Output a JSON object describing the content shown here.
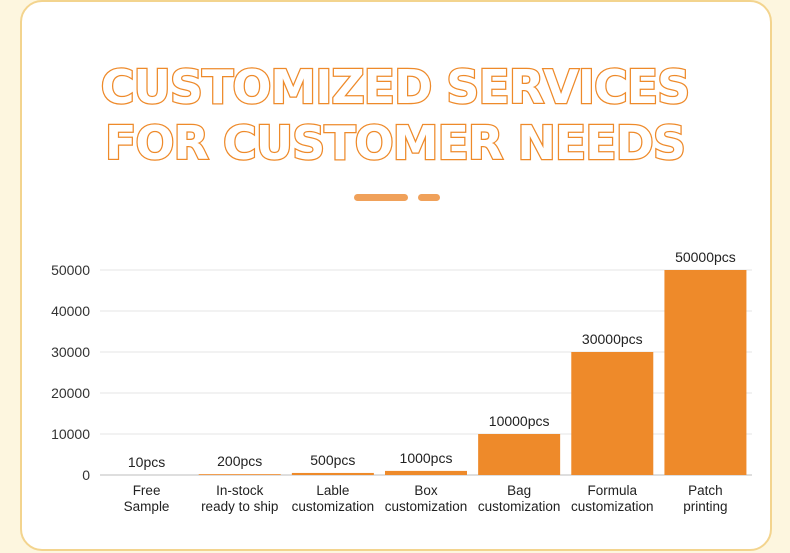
{
  "heading": {
    "line1": "CUSTOMIZED SERVICES",
    "line2": "FOR CUSTOMER NEEDS"
  },
  "colors": {
    "background": "#fdf6df",
    "card_border": "#f3d48e",
    "bar": "#ee8a2a",
    "title_stroke": "#ee8a2a",
    "divider": "#f0a15a"
  },
  "chart_data": {
    "type": "bar",
    "categories": [
      [
        "Free",
        "Sample"
      ],
      [
        "In-stock",
        "ready to ship"
      ],
      [
        "Lable",
        "customization"
      ],
      [
        "Box",
        "customization"
      ],
      [
        "Bag",
        "customization"
      ],
      [
        "Formula",
        "customization"
      ],
      [
        "Patch",
        "printing"
      ]
    ],
    "values": [
      10,
      200,
      500,
      1000,
      10000,
      30000,
      50000
    ],
    "data_labels": [
      "10pcs",
      "200pcs",
      "500pcs",
      "1000pcs",
      "10000pcs",
      "30000pcs",
      "50000pcs"
    ],
    "yticks": [
      "0",
      "10000",
      "20000",
      "30000",
      "40000",
      "50000"
    ],
    "ylim": [
      0,
      50000
    ],
    "grid": true,
    "legend": "none"
  }
}
